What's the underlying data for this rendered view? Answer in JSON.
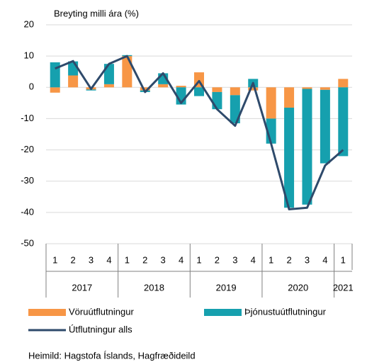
{
  "chart_data": {
    "type": "bar",
    "y_axis_label": "Breyting milli ára (%)",
    "groups": [
      {
        "label": "2017",
        "categories": [
          "1",
          "2",
          "3",
          "4"
        ]
      },
      {
        "label": "2018",
        "categories": [
          "1",
          "2",
          "3",
          "4"
        ]
      },
      {
        "label": "2019",
        "categories": [
          "1",
          "2",
          "3",
          "4"
        ]
      },
      {
        "label": "2020",
        "categories": [
          "1",
          "2",
          "3",
          "4"
        ]
      },
      {
        "label": "2021",
        "categories": [
          "1"
        ]
      }
    ],
    "series": [
      {
        "name": "Vöruútflutningur",
        "type": "bar",
        "color": "#f79646",
        "values": [
          -1.7,
          3.8,
          -0.7,
          1,
          10,
          -1,
          1,
          0.5,
          4.8,
          -1.5,
          -2.5,
          -1,
          -10,
          -6.5,
          -0.5,
          -0.8,
          2.7
        ]
      },
      {
        "name": "Þjónustuútflutningur",
        "type": "bar",
        "color": "#16a0ae",
        "values": [
          8,
          4.5,
          -0.3,
          6.5,
          0.3,
          -0.5,
          3.5,
          -5.5,
          -2.8,
          -5.5,
          -9,
          2.7,
          -8,
          -32,
          -37,
          -23.5,
          -22
        ]
      },
      {
        "name": "Útflutningur alls",
        "type": "line",
        "color": "#2e4a6b",
        "values": [
          6,
          8.4,
          -0.5,
          7.5,
          10,
          -1.5,
          4.5,
          -5,
          2,
          -7,
          -12.3,
          1.4,
          -18,
          -39,
          -38.5,
          -25,
          -20
        ]
      }
    ],
    "ylim": [
      -50,
      20
    ],
    "yticks": [
      -50,
      -40,
      -30,
      -20,
      -10,
      0,
      10,
      20
    ],
    "grid": true,
    "legend": "bottom",
    "source": "Heimild: Hagstofa Íslands, Hagfræðideild"
  }
}
